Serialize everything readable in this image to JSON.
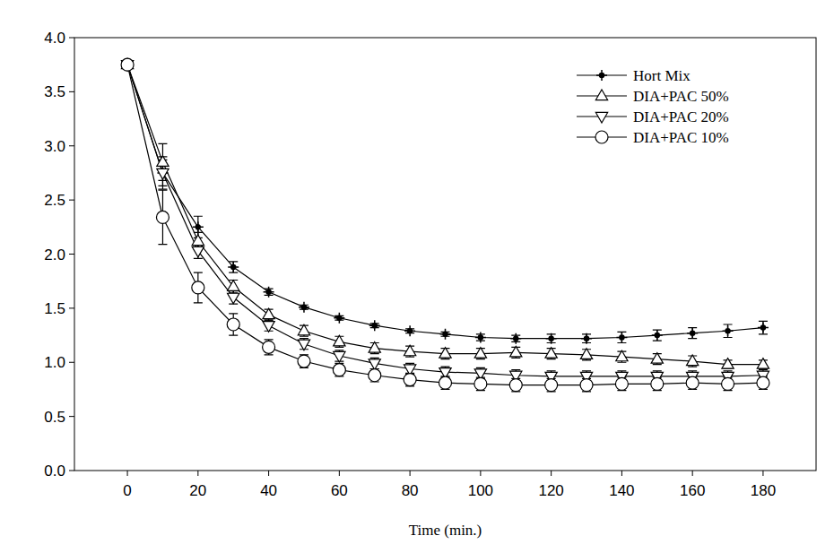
{
  "chart_data": {
    "type": "line",
    "x_label": "Time (min.)",
    "x": [
      0,
      10,
      20,
      30,
      40,
      50,
      60,
      70,
      80,
      90,
      100,
      110,
      120,
      130,
      140,
      150,
      160,
      170,
      180
    ],
    "xlim": [
      -15,
      195
    ],
    "xticks": [
      0,
      20,
      40,
      60,
      80,
      100,
      120,
      140,
      160,
      180
    ],
    "ylim": [
      0,
      4
    ],
    "yticks": [
      {
        "value": 0,
        "label": "0.0"
      },
      {
        "value": 0.5,
        "label": "0.5"
      },
      {
        "value": 1,
        "label": "1.0"
      },
      {
        "value": 1.5,
        "label": "1.5"
      },
      {
        "value": 2,
        "label": "2.0"
      },
      {
        "value": 2.5,
        "label": "2.5"
      },
      {
        "value": 3,
        "label": "3.0"
      },
      {
        "value": 3.5,
        "label": "3.5"
      },
      {
        "value": 4,
        "label": "4.0"
      }
    ],
    "grid": false,
    "legend": "top-right",
    "series": [
      {
        "name": "Hort Mix",
        "color": "#000000",
        "marker": "plus",
        "line_style": "solid",
        "values": [
          3.75,
          2.75,
          2.25,
          1.88,
          1.65,
          1.51,
          1.41,
          1.34,
          1.29,
          1.26,
          1.23,
          1.22,
          1.22,
          1.22,
          1.23,
          1.25,
          1.27,
          1.29,
          1.32
        ],
        "errors": [
          0.02,
          0.15,
          0.1,
          0.05,
          0.03,
          0.02,
          0.02,
          0.02,
          0.02,
          0.02,
          0.03,
          0.03,
          0.04,
          0.04,
          0.05,
          0.05,
          0.05,
          0.06,
          0.06
        ]
      },
      {
        "name": "DIA+PAC 50%",
        "color": "#000000",
        "marker": "triangle-up",
        "line_style": "solid",
        "values": [
          3.75,
          2.85,
          2.12,
          1.7,
          1.44,
          1.29,
          1.19,
          1.13,
          1.1,
          1.08,
          1.08,
          1.09,
          1.08,
          1.07,
          1.05,
          1.03,
          1.01,
          0.98,
          0.98
        ],
        "errors": [
          0.02,
          0.17,
          0.08,
          0.06,
          0.05,
          0.05,
          0.05,
          0.05,
          0.05,
          0.05,
          0.05,
          0.05,
          0.05,
          0.05,
          0.05,
          0.05,
          0.05,
          0.04,
          0.04
        ]
      },
      {
        "name": "DIA+PAC 20%",
        "color": "#000000",
        "marker": "triangle-down",
        "line_style": "solid",
        "values": [
          3.75,
          2.75,
          2.03,
          1.6,
          1.34,
          1.17,
          1.06,
          0.99,
          0.94,
          0.91,
          0.9,
          0.88,
          0.87,
          0.87,
          0.87,
          0.87,
          0.87,
          0.87,
          0.88
        ],
        "errors": [
          0.02,
          0.12,
          0.07,
          0.06,
          0.05,
          0.05,
          0.05,
          0.05,
          0.05,
          0.05,
          0.05,
          0.05,
          0.05,
          0.05,
          0.05,
          0.05,
          0.05,
          0.05,
          0.05
        ]
      },
      {
        "name": "DIA+PAC 10%",
        "color": "#000000",
        "marker": "circle",
        "line_style": "solid",
        "values": [
          3.75,
          2.34,
          1.69,
          1.35,
          1.14,
          1.01,
          0.93,
          0.88,
          0.84,
          0.81,
          0.8,
          0.79,
          0.79,
          0.79,
          0.8,
          0.8,
          0.81,
          0.8,
          0.81
        ],
        "errors": [
          0.02,
          0.25,
          0.14,
          0.1,
          0.07,
          0.06,
          0.06,
          0.06,
          0.06,
          0.06,
          0.06,
          0.06,
          0.06,
          0.06,
          0.06,
          0.06,
          0.06,
          0.06,
          0.06
        ]
      }
    ]
  }
}
